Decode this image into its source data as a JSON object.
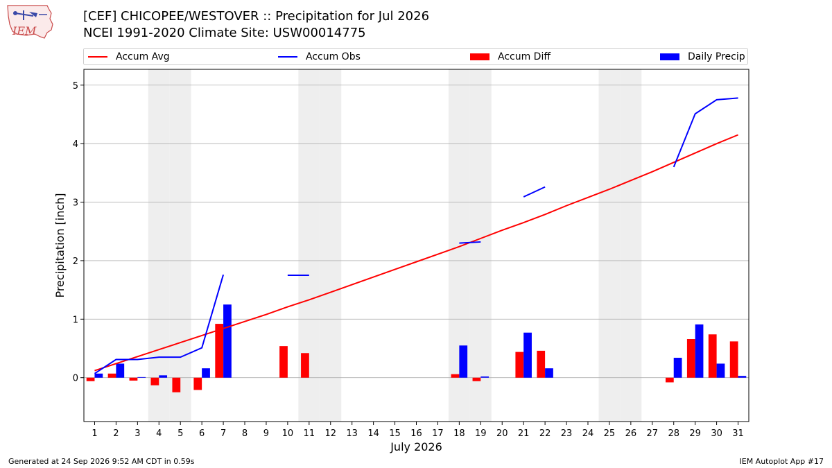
{
  "header": {
    "title_line1": "[CEF] CHICOPEE/WESTOVER :: Precipitation for Jul 2026",
    "title_line2": "NCEI 1991-2020 Climate Site: USW00014775",
    "logo_text": "IEM"
  },
  "legend": {
    "placement": "top",
    "items": [
      {
        "label": "Accum Avg",
        "kind": "line",
        "color": "#ff0000"
      },
      {
        "label": "Accum Obs",
        "kind": "line",
        "color": "#0000ff"
      },
      {
        "label": "Accum Diff",
        "kind": "bar",
        "color": "#ff0000"
      },
      {
        "label": "Daily Precip",
        "kind": "bar",
        "color": "#0000ff"
      }
    ]
  },
  "footer": {
    "left": "Generated at 24 Sep 2026 9:52 AM CDT in 0.59s",
    "right": "IEM Autoplot App #17"
  },
  "colors": {
    "avg": "#ff0000",
    "obs": "#0000ff",
    "weekend_band": "#eeeeee",
    "grid": "#b0b0b0"
  },
  "chart_data": {
    "type": "bar",
    "xlabel": "July 2026",
    "ylabel": "Precipitation [inch]",
    "xlim": [
      0.5,
      31.5
    ],
    "ylim": [
      -0.75,
      5.27
    ],
    "yticks": [
      0,
      1,
      2,
      3,
      4,
      5
    ],
    "grid": "horizontal",
    "days": [
      1,
      2,
      3,
      4,
      5,
      6,
      7,
      8,
      9,
      10,
      11,
      12,
      13,
      14,
      15,
      16,
      17,
      18,
      19,
      20,
      21,
      22,
      23,
      24,
      25,
      26,
      27,
      28,
      29,
      30,
      31
    ],
    "weekend_days": [
      4,
      5,
      11,
      12,
      18,
      19,
      25,
      26
    ],
    "series": [
      {
        "name": "Accum Avg",
        "kind": "line",
        "values": [
          0.12,
          0.24,
          0.36,
          0.48,
          0.6,
          0.72,
          0.84,
          0.96,
          1.08,
          1.21,
          1.33,
          1.46,
          1.59,
          1.72,
          1.85,
          1.98,
          2.11,
          2.24,
          2.38,
          2.52,
          2.65,
          2.79,
          2.94,
          3.08,
          3.22,
          3.37,
          3.52,
          3.68,
          3.84,
          4.0,
          4.15
        ]
      },
      {
        "name": "Accum Obs",
        "kind": "line",
        "values": [
          0.07,
          0.31,
          0.31,
          0.35,
          0.35,
          0.51,
          1.76,
          null,
          null,
          1.75,
          1.75,
          null,
          null,
          null,
          null,
          null,
          null,
          2.3,
          2.32,
          null,
          3.09,
          3.26,
          null,
          null,
          null,
          null,
          null,
          3.6,
          4.51,
          4.75,
          4.78
        ]
      },
      {
        "name": "Accum Diff",
        "kind": "bar",
        "values": [
          -0.06,
          0.07,
          -0.05,
          -0.13,
          -0.25,
          -0.21,
          0.92,
          0,
          0,
          0.54,
          0.42,
          0,
          0,
          0,
          0,
          0,
          0,
          0.06,
          -0.06,
          0,
          0.44,
          0.46,
          0,
          0,
          0,
          0,
          0,
          -0.08,
          0.66,
          0.74,
          0.62
        ]
      },
      {
        "name": "Daily Precip",
        "kind": "bar",
        "values": [
          0.07,
          0.24,
          0.01,
          0.04,
          0,
          0.16,
          1.25,
          0,
          0,
          0,
          0,
          0,
          0,
          0,
          0,
          0,
          0,
          0.55,
          0.02,
          0,
          0.77,
          0.16,
          0,
          0,
          0,
          0,
          0,
          0.34,
          0.91,
          0.24,
          0.03
        ]
      }
    ]
  }
}
